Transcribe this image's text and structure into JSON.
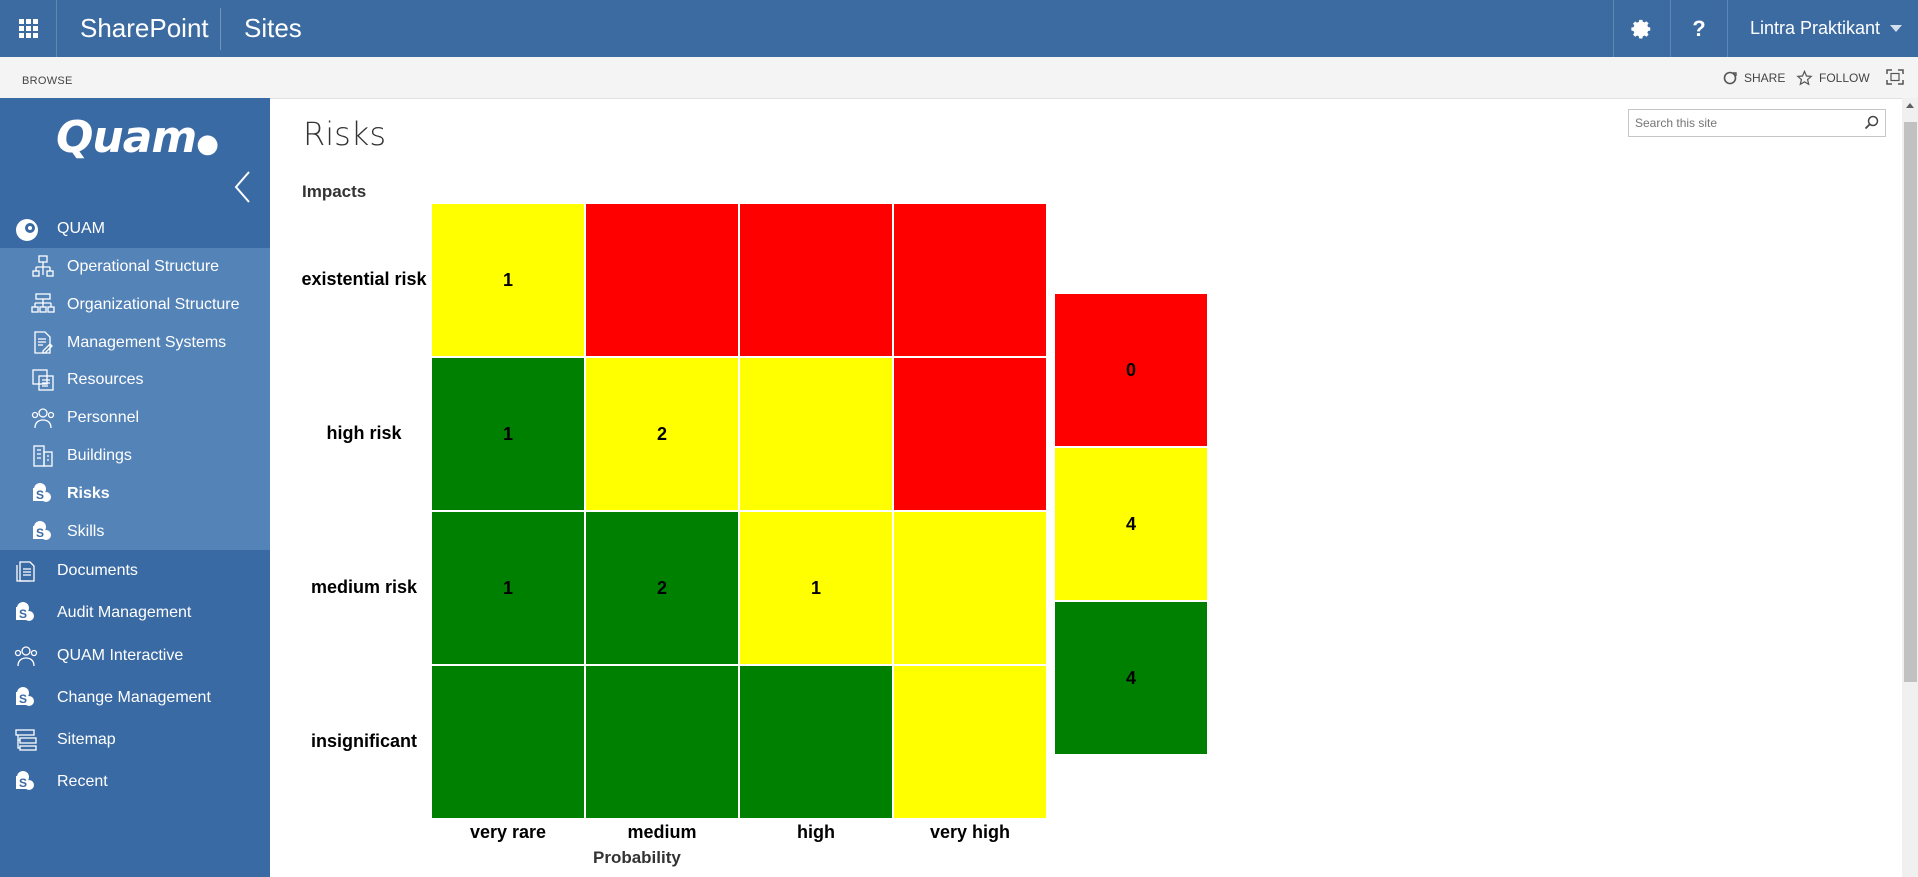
{
  "suite_bar": {
    "brand": "SharePoint",
    "sites": "Sites",
    "user": "Lintra Praktikant",
    "help": "?"
  },
  "ribbon": {
    "browse": "BROWSE",
    "share": "SHARE",
    "follow": "FOLLOW"
  },
  "left_nav": {
    "logo": "Quam",
    "root": "QUAM",
    "sub_items": [
      {
        "label": "Operational Structure",
        "icon": "flowchart-icon"
      },
      {
        "label": "Organizational Structure",
        "icon": "org-chart-icon"
      },
      {
        "label": "Management Systems",
        "icon": "document-edit-icon"
      },
      {
        "label": "Resources",
        "icon": "resources-icon"
      },
      {
        "label": "Personnel",
        "icon": "people-icon"
      },
      {
        "label": "Buildings",
        "icon": "building-icon"
      },
      {
        "label": "Risks",
        "icon": "sharepoint-icon",
        "selected": true
      },
      {
        "label": "Skills",
        "icon": "sharepoint-icon"
      }
    ],
    "top_items": [
      {
        "label": "Documents",
        "icon": "documents-icon"
      },
      {
        "label": "Audit Management",
        "icon": "sharepoint-icon"
      },
      {
        "label": "QUAM Interactive",
        "icon": "people-icon"
      },
      {
        "label": "Change Management",
        "icon": "sharepoint-icon"
      },
      {
        "label": "Sitemap",
        "icon": "sitemap-icon"
      },
      {
        "label": "Recent",
        "icon": "sharepoint-icon"
      }
    ]
  },
  "page": {
    "title": "Risks",
    "search_placeholder": "Search this site"
  },
  "matrix": {
    "y_title": "Impacts",
    "x_title": "Probability",
    "rows": [
      "existential risk",
      "high risk",
      "medium risk",
      "insignificant"
    ],
    "columns": [
      "very rare",
      "medium",
      "high",
      "very high"
    ],
    "cells": [
      [
        {
          "value": "1",
          "color": "#ffff00"
        },
        {
          "value": "",
          "color": "#ff0000"
        },
        {
          "value": "",
          "color": "#ff0000"
        },
        {
          "value": "",
          "color": "#ff0000"
        }
      ],
      [
        {
          "value": "1",
          "color": "#008000"
        },
        {
          "value": "2",
          "color": "#ffff00"
        },
        {
          "value": "",
          "color": "#ffff00"
        },
        {
          "value": "",
          "color": "#ff0000"
        }
      ],
      [
        {
          "value": "1",
          "color": "#008000"
        },
        {
          "value": "2",
          "color": "#008000"
        },
        {
          "value": "1",
          "color": "#ffff00"
        },
        {
          "value": "",
          "color": "#ffff00"
        }
      ],
      [
        {
          "value": "",
          "color": "#008000"
        },
        {
          "value": "",
          "color": "#008000"
        },
        {
          "value": "",
          "color": "#008000"
        },
        {
          "value": "",
          "color": "#ffff00"
        }
      ]
    ],
    "summary": [
      {
        "value": "0",
        "color": "#ff0000"
      },
      {
        "value": "4",
        "color": "#ffff00"
      },
      {
        "value": "4",
        "color": "#008000"
      }
    ]
  },
  "colors": {
    "suite_bar": "#3b6ba0",
    "left_nav": "#3a6aa3",
    "sub_nav": "#5483b8"
  }
}
